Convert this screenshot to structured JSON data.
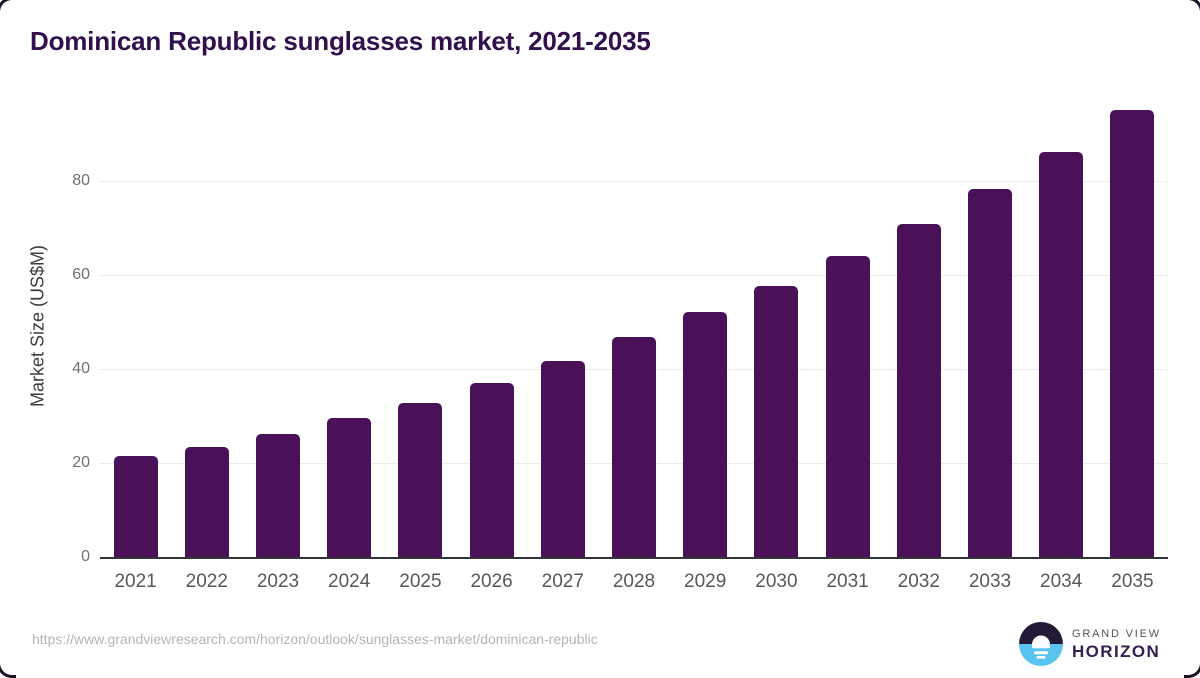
{
  "page": {
    "title": "Dominican Republic sunglasses market, 2021-2035",
    "source_url": "https://www.grandviewresearch.com/horizon/outlook/sunglasses-market/dominican-republic"
  },
  "chart_data": {
    "type": "bar",
    "title": "Dominican Republic sunglasses market, 2021-2035",
    "categories": [
      "2021",
      "2022",
      "2023",
      "2024",
      "2025",
      "2026",
      "2027",
      "2028",
      "2029",
      "2030",
      "2031",
      "2032",
      "2033",
      "2034",
      "2035"
    ],
    "values": [
      21.5,
      23.5,
      26.1,
      29.5,
      32.8,
      37.0,
      41.7,
      46.9,
      52.1,
      57.7,
      64.1,
      70.8,
      78.4,
      86.2,
      95.1
    ],
    "xlabel": "",
    "ylabel": "Market Size (US$M)",
    "yticks": [
      0,
      20,
      40,
      60,
      80
    ],
    "ylim": [
      0,
      98.3
    ],
    "grid": true,
    "legend": false,
    "bar_color": "#4a1158",
    "gridline_color": "#ececec",
    "axis_line_color": "#333338"
  },
  "colors": {
    "title_text": "#32104e",
    "tick_text": "#707073",
    "x_tick_text": "#58585c",
    "url_text": "#b5b5b7",
    "logo_dark": "#241936",
    "logo_blue": "#5ac4f0"
  },
  "branding": {
    "logo_top_text": "GRAND VIEW",
    "logo_bottom_text": "HORIZON"
  }
}
